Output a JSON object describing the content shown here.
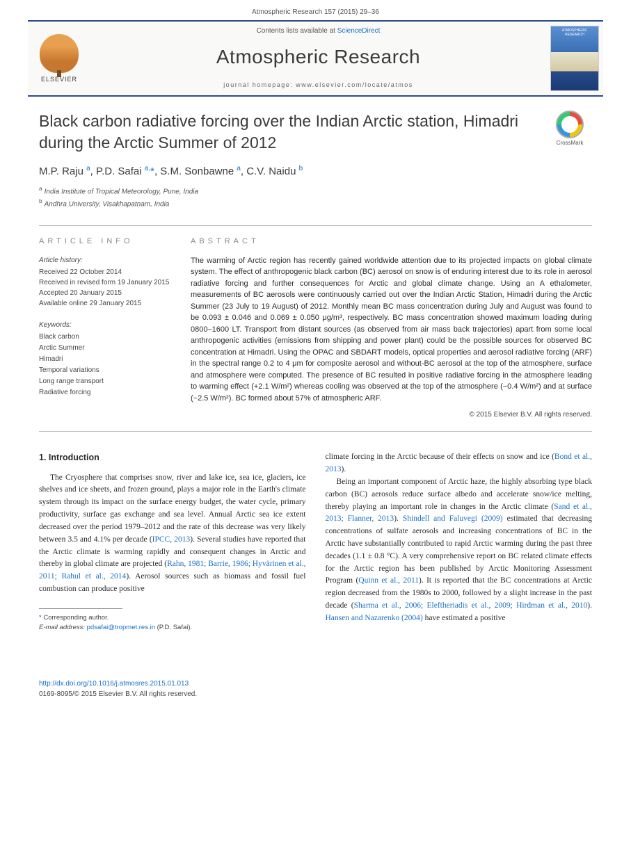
{
  "header": {
    "citation": "Atmospheric Research 157 (2015) 29–36"
  },
  "banner": {
    "contents_prefix": "Contents lists available at ",
    "contents_link": "ScienceDirect",
    "journal_title": "Atmospheric Research",
    "homepage_prefix": "journal homepage: ",
    "homepage_url": "www.elsevier.com/locate/atmos",
    "publisher": "ELSEVIER"
  },
  "title": "Black carbon radiative forcing over the Indian Arctic station, Himadri during the Arctic Summer of 2012",
  "crossmark_label": "CrossMark",
  "authors_html": "M.P. Raju <sup>a</sup>, P.D. Safai <sup>a,</sup><span class='star'>*</span>, S.M. Sonbawne <sup>a</sup>, C.V. Naidu <sup>b</sup>",
  "affiliations": [
    {
      "sup": "a",
      "text": "India Institute of Tropical Meteorology, Pune, India"
    },
    {
      "sup": "b",
      "text": "Andhra University, Visakhapatnam, India"
    }
  ],
  "article_info": {
    "heading": "article info",
    "history_label": "Article history:",
    "history": [
      "Received 22 October 2014",
      "Received in revised form 19 January 2015",
      "Accepted 20 January 2015",
      "Available online 29 January 2015"
    ],
    "keywords_label": "Keywords:",
    "keywords": [
      "Black carbon",
      "Arctic Summer",
      "Himadri",
      "Temporal variations",
      "Long range transport",
      "Radiative forcing"
    ]
  },
  "abstract": {
    "heading": "abstract",
    "text": "The warming of Arctic region has recently gained worldwide attention due to its projected impacts on global climate system. The effect of anthropogenic black carbon (BC) aerosol on snow is of enduring interest due to its role in aerosol radiative forcing and further consequences for Arctic and global climate change. Using an A ethalometer, measurements of BC aerosols were continuously carried out over the Indian Arctic Station, Himadri during the Arctic Summer (23 July to 19 August) of 2012. Monthly mean BC mass concentration during July and August was found to be 0.093 ± 0.046 and 0.069 ± 0.050 μg/m³, respectively. BC mass concentration showed maximum loading during 0800–1600 LT. Transport from distant sources (as observed from air mass back trajectories) apart from some local anthropogenic activities (emissions from shipping and power plant) could be the possible sources for observed BC concentration at Himadri. Using the OPAC and SBDART models, optical properties and aerosol radiative forcing (ARF) in the spectral range 0.2 to 4 μm for composite aerosol and without-BC aerosol at the top of the atmosphere, surface and atmosphere were computed. The presence of BC resulted in positive radiative forcing in the atmosphere leading to warming effect (+2.1 W/m²) whereas cooling was observed at the top of the atmosphere (−0.4 W/m²) and at surface (−2.5 W/m²). BC formed about 57% of atmospheric ARF.",
    "copyright": "© 2015 Elsevier B.V. All rights reserved."
  },
  "body": {
    "section_heading": "1. Introduction",
    "col1_p1": "The Cryosphere that comprises snow, river and lake ice, sea ice, glaciers, ice shelves and ice sheets, and frozen ground, plays a major role in the Earth's climate system through its impact on the surface energy budget, the water cycle, primary productivity, surface gas exchange and sea level. Annual Arctic sea ice extent decreased over the period 1979–2012 and the rate of this decrease was very likely between 3.5 and 4.1% per decade (",
    "col1_ref1": "IPCC, 2013",
    "col1_p2": "). Several studies have reported that the Arctic climate is warming rapidly and consequent changes in Arctic and thereby in global climate are projected (",
    "col1_ref2": "Rahn, 1981; Barrie, 1986; Hyvärinen et al., 2011; Rahul et al., 2014",
    "col1_p3": "). Aerosol sources such as biomass and fossil fuel combustion can produce positive",
    "col2_p1a": "climate forcing in the Arctic because of their effects on snow and ice (",
    "col2_ref1": "Bond et al., 2013",
    "col2_p1b": ").",
    "col2_p2a": "Being an important component of Arctic haze, the highly absorbing type black carbon (BC) aerosols reduce surface albedo and accelerate snow/ice melting, thereby playing an important role in changes in the Arctic climate (",
    "col2_ref2": "Sand et al., 2013; Flanner, 2013",
    "col2_p2b": "). ",
    "col2_ref3": "Shindell and Faluvegi (2009)",
    "col2_p2c": " estimated that decreasing concentrations of sulfate aerosols and increasing concentrations of BC in the Arctic have substantially contributed to rapid Arctic warming during the past three decades (1.1 ± 0.8 °C). A very comprehensive report on BC related climate effects for the Arctic region has been published by Arctic Monitoring Assessment Program (",
    "col2_ref4": "Quinn et al., 2011",
    "col2_p2d": "). It is reported that the BC concentrations at Arctic region decreased from the 1980s to 2000, followed by a slight increase in the past decade (",
    "col2_ref5": "Sharma et al., 2006; Eleftheriadis et al., 2009; Hirdman et al., 2010",
    "col2_p2e": "). ",
    "col2_ref6": "Hansen and Nazarenko (2004)",
    "col2_p2f": " have estimated a positive"
  },
  "footnotes": {
    "corr": "Corresponding author.",
    "email_label": "E-mail address:",
    "email": "pdsafai@tropmet.res.in",
    "email_who": "(P.D. Safai)."
  },
  "footer": {
    "doi": "http://dx.doi.org/10.1016/j.atmosres.2015.01.013",
    "issn_line": "0169-8095/© 2015 Elsevier B.V. All rights reserved."
  },
  "colors": {
    "rule": "#2a4a87",
    "link": "#1a6fc4",
    "text": "#2a2a2a",
    "muted": "#555"
  }
}
